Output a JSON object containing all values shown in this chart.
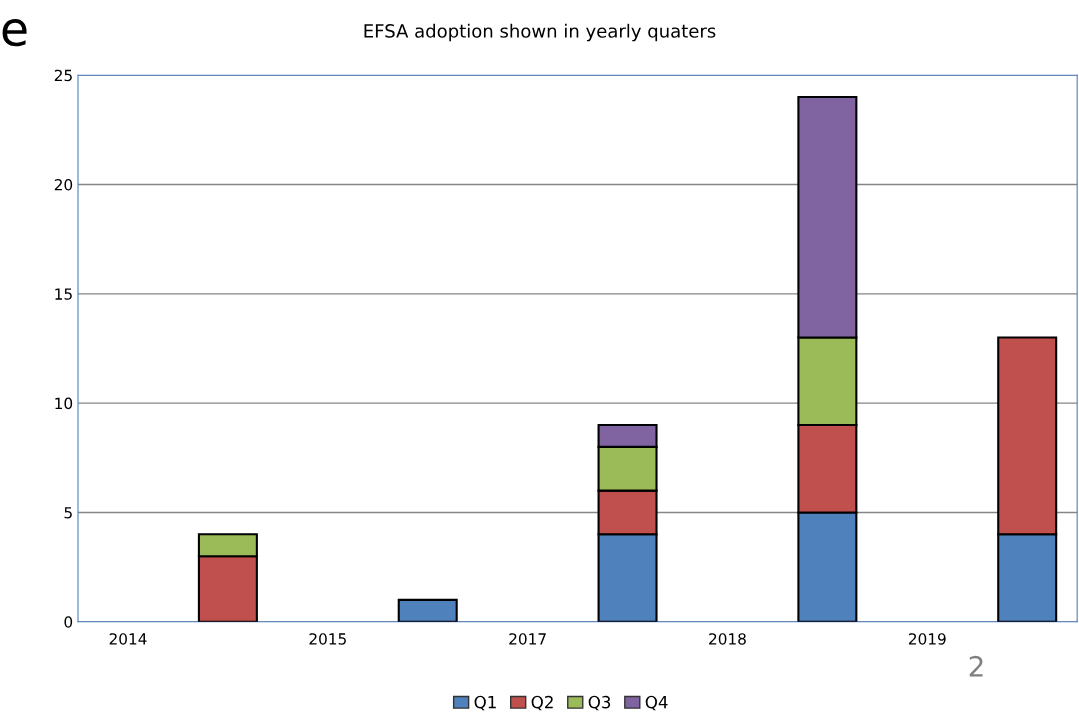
{
  "chart_data": {
    "type": "bar",
    "title": "EFSA adoption shown in yearly quaters",
    "categories": [
      "2014",
      null,
      "2015",
      null,
      "2017",
      null,
      "2018",
      null,
      "2019",
      null
    ],
    "series": [
      {
        "name": "Q1",
        "color": "#4f81bd",
        "values": [
          null,
          null,
          null,
          1,
          null,
          4,
          null,
          5,
          null,
          4
        ]
      },
      {
        "name": "Q2",
        "color": "#c0504d",
        "values": [
          null,
          3,
          null,
          null,
          null,
          2,
          null,
          4,
          null,
          9
        ]
      },
      {
        "name": "Q3",
        "color": "#9bbb59",
        "values": [
          null,
          1,
          null,
          null,
          null,
          2,
          null,
          4,
          null,
          null
        ]
      },
      {
        "name": "Q4",
        "color": "#8064a2",
        "values": [
          null,
          null,
          null,
          null,
          null,
          1,
          null,
          11,
          null,
          null
        ]
      }
    ],
    "stacked": true,
    "ylim": [
      0,
      25
    ],
    "yticks": [
      0,
      5,
      10,
      15,
      20,
      25
    ],
    "grid": "y",
    "legend": "bottom",
    "annotations": [
      "e",
      "2"
    ]
  }
}
